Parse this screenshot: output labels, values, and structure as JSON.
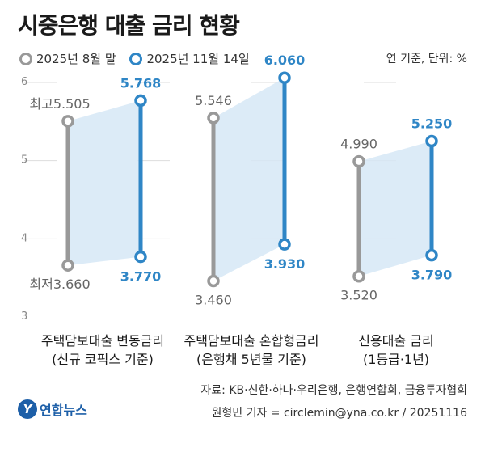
{
  "title": "시중은행 대출 금리 현황",
  "legend": [
    {
      "label": "2025년 8월 말",
      "color": "#999999"
    },
    {
      "label": "2025년 11월 14일",
      "color": "#2f86c6"
    }
  ],
  "unit": "연 기준, 단위: %",
  "source": "자료: KB·신한·하나·우리은행, 은행연합회, 금융투자협회",
  "credit": "원형민 기자 = circlemin@yna.co.kr / 20251116",
  "logo": {
    "text": "연합뉴스",
    "mark": "Y"
  },
  "colors": {
    "old": "#999999",
    "new": "#2f86c6",
    "band": "#d6e8f6",
    "grid": "#dddddd"
  },
  "chart_data": {
    "type": "range-dumbbell",
    "ylim": [
      3,
      6
    ],
    "yticks": [
      3,
      4,
      5,
      6
    ],
    "grid": true,
    "series": [
      {
        "name": "2025년 8월 말",
        "color": "#999999"
      },
      {
        "name": "2025년 11월 14일",
        "color": "#2f86c6"
      }
    ],
    "groups": [
      {
        "label": [
          "주택담보대출 변동금리",
          "(신규 코픽스 기준)"
        ],
        "old": {
          "high": 5.505,
          "low": 3.66,
          "high_label": "5.505",
          "low_label": "3.660",
          "high_prefix": "최고",
          "low_prefix": "최저"
        },
        "new": {
          "high": 5.768,
          "low": 3.77,
          "high_label": "5.768",
          "low_label": "3.770"
        }
      },
      {
        "label": [
          "주택담보대출 혼합형금리",
          "(은행채 5년물 기준)"
        ],
        "old": {
          "high": 5.546,
          "low": 3.46,
          "high_label": "5.546",
          "low_label": "3.460",
          "high_prefix": "",
          "low_prefix": ""
        },
        "new": {
          "high": 6.06,
          "low": 3.93,
          "high_label": "6.060",
          "low_label": "3.930"
        }
      },
      {
        "label": [
          "신용대출 금리",
          "(1등급·1년)"
        ],
        "old": {
          "high": 4.99,
          "low": 3.52,
          "high_label": "4.990",
          "low_label": "3.520",
          "high_prefix": "",
          "low_prefix": ""
        },
        "new": {
          "high": 5.25,
          "low": 3.79,
          "high_label": "5.250",
          "low_label": "3.790"
        }
      }
    ]
  }
}
